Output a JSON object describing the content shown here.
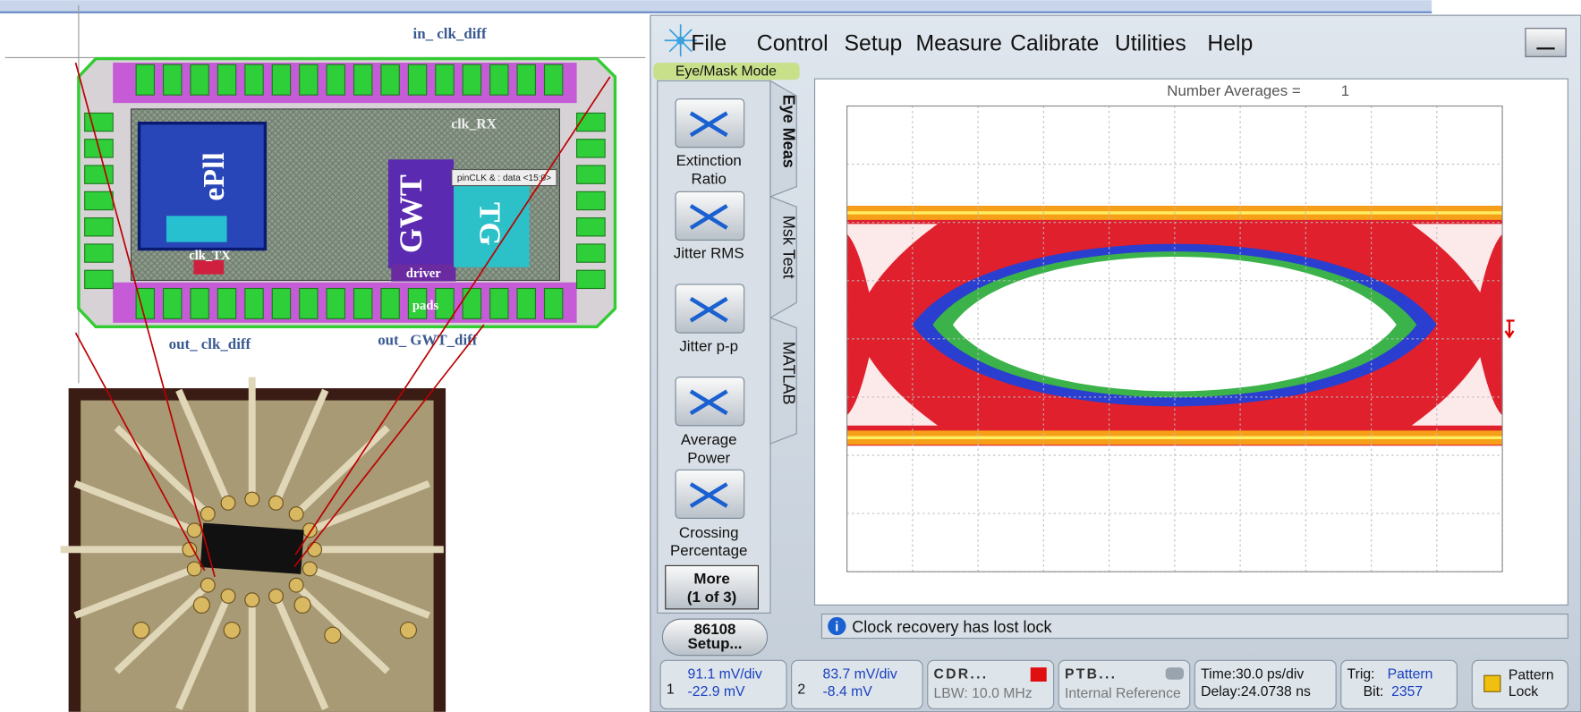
{
  "layout": {
    "labels": {
      "in_clk": "in_ clk_diff",
      "clk_rx": "clk_RX",
      "epll": "ePll",
      "gwt": "GWT",
      "driver": "driver",
      "tg": "TG",
      "clk_tx": "clk_TX",
      "pads": "pads",
      "out_clk": "out_ clk_diff",
      "out_gwt": "out_ GWT_diff",
      "pin": "pinCLK & : data <15:0>"
    }
  },
  "scope": {
    "menu": [
      "File",
      "Control",
      "Setup",
      "Measure",
      "Calibrate",
      "Utilities",
      "Help"
    ],
    "mode": "Eye/Mask Mode",
    "tabs": [
      "Eye Meas",
      "Msk Test",
      "MATLAB"
    ],
    "buttons": [
      {
        "lines": [
          "Extinction",
          "Ratio"
        ]
      },
      {
        "lines": [
          "Jitter RMS"
        ]
      },
      {
        "lines": [
          "Jitter p-p"
        ]
      },
      {
        "lines": [
          "Average",
          "Power"
        ]
      },
      {
        "lines": [
          "Crossing",
          "Percentage"
        ]
      }
    ],
    "more": [
      "More",
      "(1 of 3)"
    ],
    "setup": [
      "86108",
      "Setup..."
    ],
    "averages_label": "Number Averages =",
    "averages_value": "1",
    "message": "Clock recovery has lost lock",
    "status": {
      "ch1": {
        "num": "1",
        "scale": "91.1 mV/div",
        "offset": "-22.9 mV"
      },
      "ch2": {
        "num": "2",
        "scale": "83.7 mV/div",
        "offset": "-8.4 mV"
      },
      "cdr": {
        "title": "CDR...",
        "sub": "LBW: 10.0 MHz"
      },
      "ptb": {
        "title": "PTB...",
        "sub": "Internal Reference"
      },
      "time": {
        "scale": "Time:30.0 ps/div",
        "delay": "Delay:24.0738 ns"
      },
      "trig": {
        "label": "Trig:",
        "value": "Pattern",
        "bit_label": "Bit:",
        "bit_value": "2357"
      },
      "lock": [
        "Pattern",
        "Lock"
      ]
    }
  }
}
